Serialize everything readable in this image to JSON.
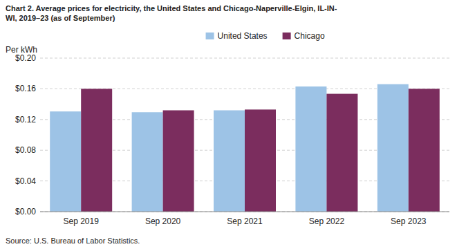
{
  "chart_data": {
    "type": "bar",
    "title": "Chart 2. Average prices for electricity, the United States and Chicago-Naperville-Elgin, IL-IN-\nWI, 2019–23 (as of September)",
    "y_label": "Per kWh",
    "source": "Source: U.S. Bureau of Labor Statistics.",
    "categories": [
      "Sep 2019",
      "Sep 2020",
      "Sep 2021",
      "Sep 2022",
      "Sep 2023"
    ],
    "series": [
      {
        "name": "United States",
        "color": "#9DC3E6",
        "values": [
          0.1305,
          0.1295,
          0.132,
          0.163,
          0.166
        ]
      },
      {
        "name": "Chicago",
        "color": "#7B2D5E",
        "values": [
          0.16,
          0.132,
          0.133,
          0.1535,
          0.16
        ]
      }
    ],
    "ylim": [
      0.0,
      0.2
    ],
    "yticks": [
      {
        "value": 0.0,
        "label": "$0.00"
      },
      {
        "value": 0.04,
        "label": "$0.04"
      },
      {
        "value": 0.08,
        "label": "$0.08"
      },
      {
        "value": 0.12,
        "label": "$0.12"
      },
      {
        "value": 0.16,
        "label": "$0.16"
      },
      {
        "value": 0.2,
        "label": "$0.20"
      }
    ],
    "grid": true,
    "legend": "top"
  }
}
